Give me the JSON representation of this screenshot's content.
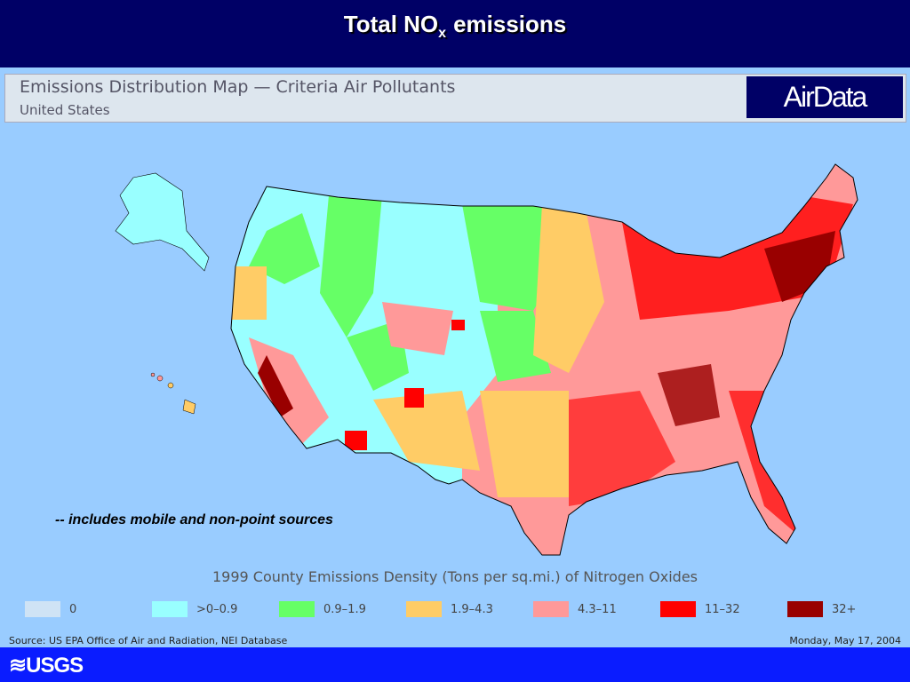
{
  "header": {
    "title": {
      "text": "Total NO",
      "subscript": "x",
      "suffix": "emissions"
    }
  },
  "banner": {
    "heading": "Emissions Distribution Map — Criteria Air Pollutants",
    "subheading": "United States",
    "logo": "AirData"
  },
  "note": "-- includes mobile and non-point sources",
  "legend": {
    "title": "1999 County Emissions Density (Tons per sq.mi.) of Nitrogen Oxides",
    "items": [
      {
        "label": "0",
        "color": "#cfe3f5"
      },
      {
        "label": ">0–0.9",
        "color": "#99ffff"
      },
      {
        "label": "0.9–1.9",
        "color": "#66ff66"
      },
      {
        "label": "1.9–4.3",
        "color": "#ffcc66"
      },
      {
        "label": "4.3–11",
        "color": "#ff9999"
      },
      {
        "label": "11–32",
        "color": "#ff0000"
      },
      {
        "label": "32+",
        "color": "#990000"
      }
    ]
  },
  "footer": {
    "source": "Source: US EPA  Office of Air and Radiation, NEI Database",
    "date": "Monday, May 17, 2004",
    "brand": "≋USGS"
  }
}
